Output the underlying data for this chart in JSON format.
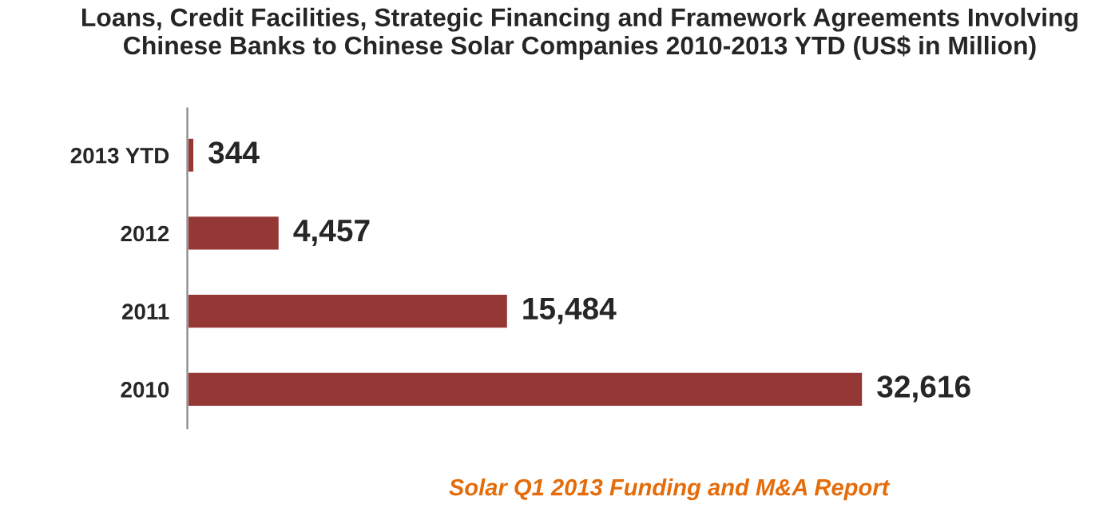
{
  "chart_data": {
    "type": "bar",
    "orientation": "horizontal",
    "title": "Loans, Credit Facilities, Strategic Financing and Framework Agreements Involving Chinese Banks to Chinese Solar Companies 2010-2013 YTD (US$ in Million)",
    "categories": [
      "2013 YTD",
      "2012",
      "2011",
      "2010"
    ],
    "values": [
      344,
      4457,
      15484,
      32616
    ],
    "value_labels": [
      "344",
      "4,457",
      "15,484",
      "32,616"
    ],
    "color": "#953735",
    "tick_labels": "y",
    "grid": false,
    "legend": false,
    "annotations": [
      "Solar Q1 2013 Funding and M&A Report"
    ]
  }
}
